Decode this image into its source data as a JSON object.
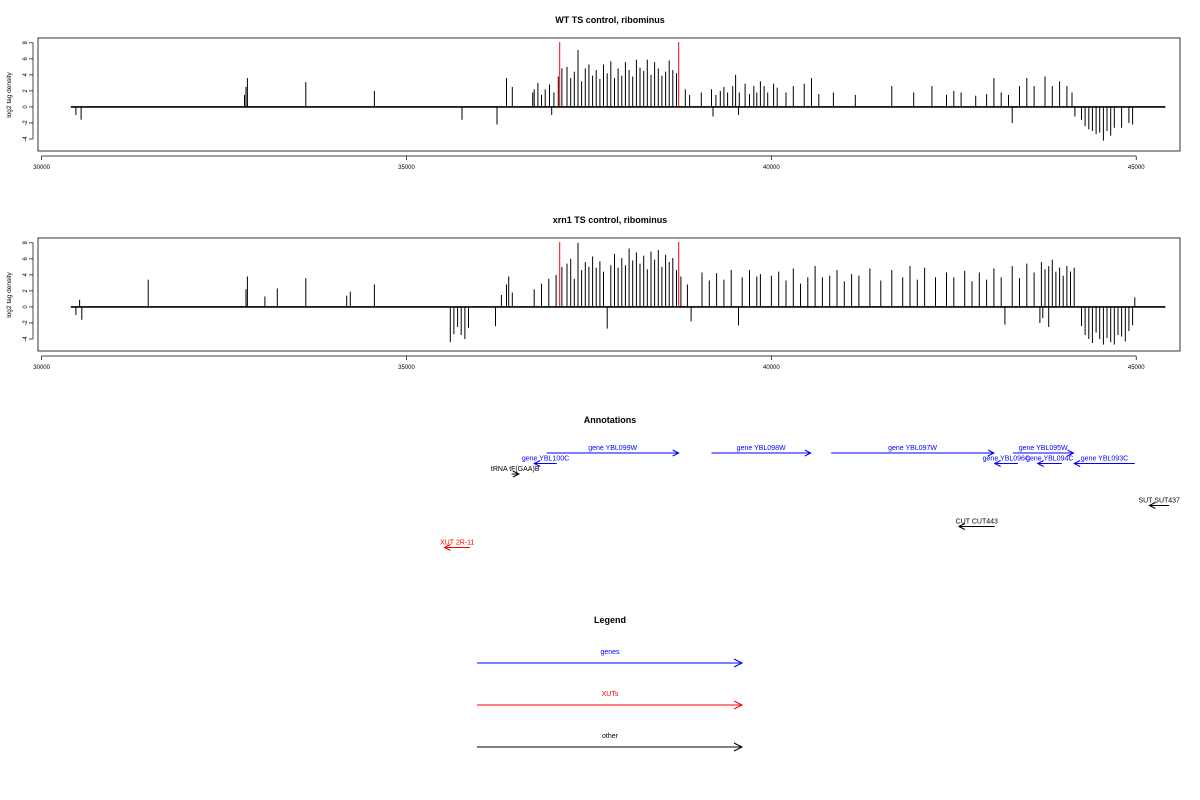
{
  "colors": {
    "signal": "#000000",
    "marker": "#ff0000",
    "genes": "#0000ff",
    "xuts": "#ff0000",
    "other": "#000000"
  },
  "chart_data": [
    {
      "type": "bar",
      "title": "WT TS control, ribominus",
      "xlabel": "",
      "ylabel": "log2 tag density",
      "xlim": [
        29950,
        45600
      ],
      "ylim": [
        -5.5,
        8.6
      ],
      "xticks": [
        30000,
        35000,
        40000,
        45000
      ],
      "yticks": [
        -4,
        -2,
        0,
        2,
        4,
        6,
        8
      ],
      "xtick_labels": [
        "30000",
        "35000",
        "40000",
        "45000"
      ],
      "ytick_labels": [
        "-4",
        "-2",
        "0",
        "2",
        "4",
        "6",
        "8"
      ],
      "baseline": [
        30400,
        45400
      ],
      "markers": [
        37100,
        38730
      ],
      "grid": false,
      "spikes": [
        [
          30470,
          -1.0
        ],
        [
          30540,
          -1.6
        ],
        [
          32780,
          1.5
        ],
        [
          32800,
          2.5
        ],
        [
          32820,
          3.6
        ],
        [
          33620,
          3.1
        ],
        [
          34560,
          2.0
        ],
        [
          35760,
          -1.6
        ],
        [
          36240,
          -2.2
        ],
        [
          36370,
          3.6
        ],
        [
          36450,
          2.5
        ],
        [
          36730,
          1.8
        ],
        [
          36750,
          2.2
        ],
        [
          36800,
          3.0
        ],
        [
          36850,
          1.5
        ],
        [
          36900,
          2.2
        ],
        [
          36960,
          2.8
        ],
        [
          37020,
          1.8
        ],
        [
          37080,
          3.8
        ],
        [
          37130,
          4.8
        ],
        [
          37200,
          5.0
        ],
        [
          37250,
          3.6
        ],
        [
          37300,
          4.4
        ],
        [
          37350,
          7.1
        ],
        [
          37400,
          3.2
        ],
        [
          37450,
          4.8
        ],
        [
          37500,
          5.3
        ],
        [
          37550,
          3.9
        ],
        [
          37600,
          4.6
        ],
        [
          37650,
          3.5
        ],
        [
          37700,
          5.3
        ],
        [
          37750,
          4.2
        ],
        [
          37800,
          5.7
        ],
        [
          37850,
          3.6
        ],
        [
          37900,
          4.8
        ],
        [
          37950,
          3.9
        ],
        [
          38000,
          5.6
        ],
        [
          38050,
          4.6
        ],
        [
          38100,
          3.8
        ],
        [
          38150,
          5.9
        ],
        [
          38200,
          4.9
        ],
        [
          38250,
          4.5
        ],
        [
          38300,
          5.9
        ],
        [
          38350,
          4.0
        ],
        [
          38400,
          5.6
        ],
        [
          38450,
          4.8
        ],
        [
          38500,
          3.9
        ],
        [
          38550,
          4.4
        ],
        [
          38600,
          5.8
        ],
        [
          38650,
          4.6
        ],
        [
          38700,
          4.2
        ],
        [
          36990,
          -1.0
        ],
        [
          38820,
          2.2
        ],
        [
          38880,
          1.5
        ],
        [
          39040,
          1.8
        ],
        [
          39180,
          2.2
        ],
        [
          39240,
          1.5
        ],
        [
          39300,
          2.0
        ],
        [
          39350,
          2.5
        ],
        [
          39400,
          1.8
        ],
        [
          39470,
          2.6
        ],
        [
          39510,
          4.0
        ],
        [
          39560,
          1.8
        ],
        [
          39640,
          2.9
        ],
        [
          39700,
          1.6
        ],
        [
          39760,
          2.6
        ],
        [
          39800,
          1.8
        ],
        [
          39850,
          3.2
        ],
        [
          39900,
          2.6
        ],
        [
          39950,
          1.8
        ],
        [
          40030,
          2.9
        ],
        [
          40080,
          2.4
        ],
        [
          40200,
          1.8
        ],
        [
          40300,
          2.6
        ],
        [
          40450,
          2.9
        ],
        [
          40550,
          3.6
        ],
        [
          40650,
          1.6
        ],
        [
          40850,
          1.8
        ],
        [
          41150,
          1.5
        ],
        [
          41650,
          2.6
        ],
        [
          41950,
          1.8
        ],
        [
          42200,
          2.6
        ],
        [
          42400,
          1.5
        ],
        [
          42500,
          2.0
        ],
        [
          42600,
          1.8
        ],
        [
          42800,
          1.4
        ],
        [
          42950,
          1.6
        ],
        [
          43050,
          3.6
        ],
        [
          43150,
          1.8
        ],
        [
          43250,
          1.5
        ],
        [
          43400,
          2.6
        ],
        [
          43500,
          3.6
        ],
        [
          43600,
          2.6
        ],
        [
          43750,
          3.8
        ],
        [
          43850,
          2.6
        ],
        [
          43950,
          3.2
        ],
        [
          44050,
          2.6
        ],
        [
          44120,
          1.8
        ],
        [
          39200,
          -1.2
        ],
        [
          39550,
          -1.0
        ],
        [
          43300,
          -2.0
        ],
        [
          44160,
          -1.2
        ],
        [
          44250,
          -1.6
        ],
        [
          44300,
          -2.4
        ],
        [
          44350,
          -2.8
        ],
        [
          44400,
          -3.0
        ],
        [
          44450,
          -3.4
        ],
        [
          44500,
          -3.2
        ],
        [
          44550,
          -4.2
        ],
        [
          44600,
          -3.0
        ],
        [
          44650,
          -3.6
        ],
        [
          44700,
          -2.6
        ],
        [
          44800,
          -2.6
        ],
        [
          44900,
          -2.0
        ],
        [
          44950,
          -2.2
        ]
      ]
    },
    {
      "type": "bar",
      "title": "xrn1 TS control, ribominus",
      "xlabel": "",
      "ylabel": "log2 tag density",
      "xlim": [
        29950,
        45600
      ],
      "ylim": [
        -5.5,
        8.6
      ],
      "xticks": [
        30000,
        35000,
        40000,
        45000
      ],
      "yticks": [
        -4,
        -2,
        0,
        2,
        4,
        6,
        8
      ],
      "xtick_labels": [
        "30000",
        "35000",
        "40000",
        "45000"
      ],
      "ytick_labels": [
        "-4",
        "-2",
        "0",
        "2",
        "4",
        "6",
        "8"
      ],
      "baseline": [
        30400,
        45400
      ],
      "markers": [
        37100,
        38730
      ],
      "grid": false,
      "spikes": [
        [
          30470,
          -1.0
        ],
        [
          30520,
          0.9
        ],
        [
          30550,
          -1.6
        ],
        [
          31460,
          3.4
        ],
        [
          32800,
          2.2
        ],
        [
          32820,
          3.8
        ],
        [
          33060,
          1.3
        ],
        [
          33230,
          2.3
        ],
        [
          33620,
          3.6
        ],
        [
          34180,
          1.4
        ],
        [
          34230,
          1.9
        ],
        [
          34560,
          2.8
        ],
        [
          35600,
          -4.4
        ],
        [
          35650,
          -3.4
        ],
        [
          35700,
          -2.5
        ],
        [
          35750,
          -3.5
        ],
        [
          35800,
          -4.0
        ],
        [
          35850,
          -2.6
        ],
        [
          36220,
          -2.4
        ],
        [
          36300,
          1.5
        ],
        [
          36370,
          2.8
        ],
        [
          36400,
          3.8
        ],
        [
          36450,
          1.8
        ],
        [
          36750,
          2.2
        ],
        [
          36850,
          2.9
        ],
        [
          36950,
          3.5
        ],
        [
          37050,
          4.0
        ],
        [
          37130,
          5.0
        ],
        [
          37200,
          5.4
        ],
        [
          37250,
          6.0
        ],
        [
          37300,
          3.5
        ],
        [
          37350,
          8.0
        ],
        [
          37400,
          4.6
        ],
        [
          37450,
          5.6
        ],
        [
          37500,
          5.0
        ],
        [
          37550,
          6.3
        ],
        [
          37600,
          4.9
        ],
        [
          37650,
          5.7
        ],
        [
          37700,
          4.4
        ],
        [
          37750,
          -2.7
        ],
        [
          37800,
          5.2
        ],
        [
          37850,
          6.6
        ],
        [
          37900,
          4.9
        ],
        [
          37950,
          6.1
        ],
        [
          38000,
          5.2
        ],
        [
          38050,
          7.3
        ],
        [
          38100,
          5.8
        ],
        [
          38150,
          6.8
        ],
        [
          38200,
          5.4
        ],
        [
          38250,
          6.4
        ],
        [
          38300,
          4.7
        ],
        [
          38350,
          6.9
        ],
        [
          38400,
          5.9
        ],
        [
          38450,
          7.1
        ],
        [
          38500,
          5.0
        ],
        [
          38550,
          6.5
        ],
        [
          38600,
          5.6
        ],
        [
          38650,
          6.1
        ],
        [
          38700,
          4.6
        ],
        [
          38760,
          3.8
        ],
        [
          38850,
          2.8
        ],
        [
          38900,
          -1.8
        ],
        [
          39050,
          4.3
        ],
        [
          39150,
          3.3
        ],
        [
          39250,
          4.2
        ],
        [
          39350,
          3.4
        ],
        [
          39450,
          4.6
        ],
        [
          39550,
          -2.3
        ],
        [
          39600,
          3.7
        ],
        [
          39700,
          4.6
        ],
        [
          39800,
          3.8
        ],
        [
          39850,
          4.1
        ],
        [
          40000,
          3.9
        ],
        [
          40100,
          4.4
        ],
        [
          40200,
          3.3
        ],
        [
          40300,
          4.8
        ],
        [
          40400,
          2.9
        ],
        [
          40500,
          3.7
        ],
        [
          40600,
          5.1
        ],
        [
          40700,
          3.7
        ],
        [
          40800,
          3.9
        ],
        [
          40900,
          4.6
        ],
        [
          41000,
          3.2
        ],
        [
          41100,
          4.1
        ],
        [
          41200,
          3.9
        ],
        [
          41350,
          4.8
        ],
        [
          41500,
          3.3
        ],
        [
          41650,
          4.6
        ],
        [
          41800,
          3.7
        ],
        [
          41900,
          5.1
        ],
        [
          42000,
          3.4
        ],
        [
          42100,
          4.9
        ],
        [
          42250,
          3.7
        ],
        [
          42400,
          4.3
        ],
        [
          42500,
          3.7
        ],
        [
          42650,
          4.5
        ],
        [
          42750,
          3.2
        ],
        [
          42850,
          4.3
        ],
        [
          42950,
          3.4
        ],
        [
          43050,
          4.8
        ],
        [
          43150,
          3.7
        ],
        [
          43200,
          -2.2
        ],
        [
          43300,
          5.1
        ],
        [
          43400,
          3.6
        ],
        [
          43500,
          5.4
        ],
        [
          43600,
          4.3
        ],
        [
          43700,
          5.6
        ],
        [
          43750,
          4.7
        ],
        [
          43800,
          5.1
        ],
        [
          43850,
          5.9
        ],
        [
          43900,
          4.4
        ],
        [
          43950,
          4.9
        ],
        [
          44000,
          3.9
        ],
        [
          44050,
          5.1
        ],
        [
          44100,
          4.4
        ],
        [
          44150,
          4.9
        ],
        [
          43720,
          -1.4
        ],
        [
          43680,
          -2.0
        ],
        [
          43800,
          -2.5
        ],
        [
          44250,
          -2.4
        ],
        [
          44300,
          -3.5
        ],
        [
          44350,
          -4.0
        ],
        [
          44400,
          -4.5
        ],
        [
          44450,
          -3.2
        ],
        [
          44500,
          -4.0
        ],
        [
          44550,
          -4.7
        ],
        [
          44600,
          -3.9
        ],
        [
          44650,
          -4.4
        ],
        [
          44700,
          -4.7
        ],
        [
          44750,
          -3.5
        ],
        [
          44800,
          -3.7
        ],
        [
          44850,
          -4.3
        ],
        [
          44900,
          -3.0
        ],
        [
          44950,
          -2.3
        ],
        [
          44980,
          1.2
        ]
      ]
    }
  ],
  "annotations": {
    "title": "Annotations",
    "items": [
      {
        "label": "gene YBL099W",
        "start": 36920,
        "end": 38730,
        "strand": "+",
        "category": "genes",
        "row": 0
      },
      {
        "label": "gene YBL098W",
        "start": 39180,
        "end": 40540,
        "strand": "+",
        "category": "genes",
        "row": 0
      },
      {
        "label": "gene YBL097W",
        "start": 40820,
        "end": 43050,
        "strand": "+",
        "category": "genes",
        "row": 0
      },
      {
        "label": "gene YBL095W",
        "start": 43310,
        "end": 44140,
        "strand": "+",
        "category": "genes",
        "row": 0
      },
      {
        "label": "gene YBL100C",
        "start": 36750,
        "end": 37060,
        "strand": "-",
        "category": "genes",
        "row": 1
      },
      {
        "label": "gene YBL096C",
        "start": 43060,
        "end": 43380,
        "strand": "-",
        "category": "genes",
        "row": 1
      },
      {
        "label": "gene YBL094C",
        "start": 43650,
        "end": 43980,
        "strand": "-",
        "category": "genes",
        "row": 1
      },
      {
        "label": "gene YBL093C",
        "start": 44150,
        "end": 44980,
        "strand": "-",
        "category": "genes",
        "row": 1
      },
      {
        "label": "tRNA tF(GAA)B",
        "start": 36440,
        "end": 36540,
        "strand": "+",
        "category": "other",
        "row": 2
      },
      {
        "label": "SUT SUT437",
        "start": 45180,
        "end": 45450,
        "strand": "-",
        "category": "other",
        "row": 5
      },
      {
        "label": "CUT CUT443",
        "start": 42570,
        "end": 43060,
        "strand": "-",
        "category": "other",
        "row": 7
      },
      {
        "label": "XUT 2R-11",
        "start": 35520,
        "end": 35870,
        "strand": "-",
        "category": "xuts",
        "row": 9
      }
    ]
  },
  "legend": {
    "title": "Legend",
    "items": [
      {
        "label": "genes",
        "color": "#0000ff"
      },
      {
        "label": "XUTs",
        "color": "#ff0000"
      },
      {
        "label": "other",
        "color": "#000000"
      }
    ]
  }
}
